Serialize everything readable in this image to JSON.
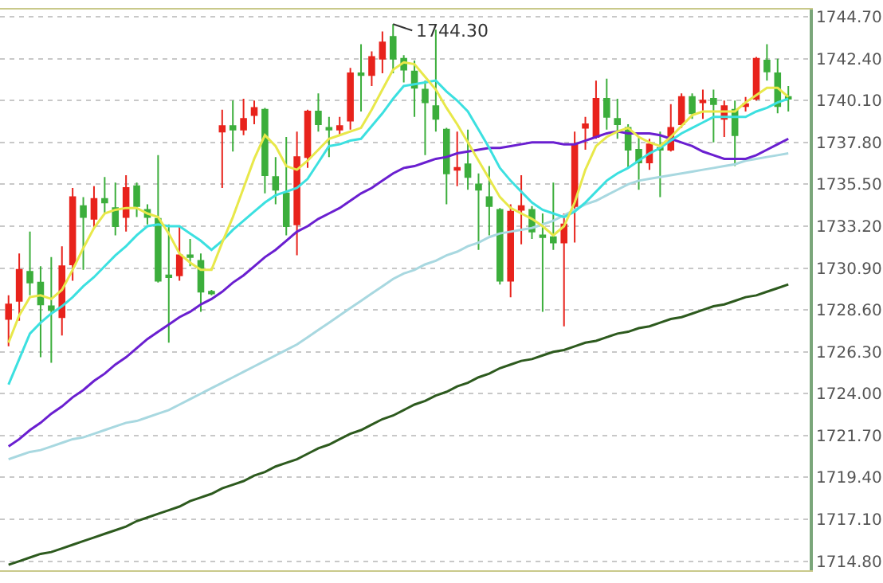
{
  "chart_data": {
    "type": "candlestick",
    "categories": [
      null,
      null,
      null,
      null,
      null,
      null,
      null,
      null,
      null,
      null,
      null,
      null,
      null,
      null,
      null,
      null,
      null,
      null,
      null,
      null,
      null,
      null,
      null,
      null,
      null,
      null,
      null,
      null,
      null,
      null,
      null,
      null,
      null,
      null,
      null,
      null,
      null,
      null,
      null,
      null,
      null,
      null,
      null,
      null,
      null,
      null,
      null,
      null,
      null,
      null,
      null,
      null,
      null,
      null,
      null,
      null,
      null,
      null,
      null,
      null,
      null,
      null,
      null,
      null,
      null,
      null,
      null,
      null,
      null,
      null,
      null,
      null,
      null,
      null
    ],
    "ohlc": [
      [
        1728.1,
        1729.4,
        1726.6,
        1728.9
      ],
      [
        1729.1,
        1731.7,
        1728.0,
        1730.8
      ],
      [
        1730.7,
        1732.9,
        1729.4,
        1730.1
      ],
      [
        1730.1,
        1731.0,
        1726.0,
        1728.9
      ],
      [
        1728.8,
        1731.5,
        1725.7,
        1728.6
      ],
      [
        1728.2,
        1732.1,
        1727.2,
        1731.0
      ],
      [
        1731.1,
        1735.3,
        1730.2,
        1734.8
      ],
      [
        1734.3,
        1734.8,
        1730.8,
        1733.7
      ],
      [
        1733.6,
        1735.4,
        1733.1,
        1734.7
      ],
      [
        1734.7,
        1735.9,
        1733.9,
        1734.5
      ],
      [
        1734.2,
        1735.6,
        1732.7,
        1733.2
      ],
      [
        1733.7,
        1736.0,
        1732.9,
        1735.3
      ],
      [
        1735.4,
        1735.6,
        1733.7,
        1734.3
      ],
      [
        1734.1,
        1734.4,
        1733.3,
        1733.7
      ],
      [
        1733.6,
        1737.1,
        1730.1,
        1730.2
      ],
      [
        1730.5,
        1733.3,
        1726.8,
        1730.4
      ],
      [
        1730.5,
        1733.2,
        1730.2,
        1731.6
      ],
      [
        1731.6,
        1732.5,
        1731.0,
        1731.5
      ],
      [
        1731.3,
        1731.7,
        1728.5,
        1729.6
      ],
      [
        1729.6,
        1729.7,
        1729.4,
        1729.5
      ],
      [
        1738.4,
        1739.6,
        1735.3,
        1738.7
      ],
      [
        1738.7,
        1740.1,
        1737.3,
        1738.5
      ],
      [
        1738.5,
        1740.2,
        1738.2,
        1739.1
      ],
      [
        1739.3,
        1740.1,
        1738.8,
        1739.7
      ],
      [
        1739.6,
        1739.7,
        1735.0,
        1736.0
      ],
      [
        1735.9,
        1737.0,
        1734.4,
        1735.2
      ],
      [
        1735.0,
        1738.1,
        1732.7,
        1733.2
      ],
      [
        1733.3,
        1738.4,
        1731.6,
        1737.0
      ],
      [
        1737.0,
        1739.6,
        1736.4,
        1739.5
      ],
      [
        1739.5,
        1740.5,
        1738.4,
        1738.8
      ],
      [
        1738.6,
        1739.2,
        1737.0,
        1738.5
      ],
      [
        1738.5,
        1739.2,
        1738.2,
        1738.7
      ],
      [
        1739.0,
        1741.9,
        1738.5,
        1741.6
      ],
      [
        1741.6,
        1743.2,
        1739.5,
        1741.5
      ],
      [
        1741.5,
        1742.8,
        1740.9,
        1742.5
      ],
      [
        1742.4,
        1743.9,
        1741.6,
        1743.3
      ],
      [
        1743.6,
        1744.3,
        1741.6,
        1742.4
      ],
      [
        1742.4,
        1742.6,
        1741.1,
        1741.8
      ],
      [
        1741.7,
        1742.3,
        1739.2,
        1740.8
      ],
      [
        1740.7,
        1741.2,
        1737.1,
        1740.0
      ],
      [
        1739.8,
        1744.0,
        1738.4,
        1739.1
      ],
      [
        1738.5,
        1738.6,
        1734.4,
        1736.1
      ],
      [
        1736.3,
        1738.4,
        1735.4,
        1736.4
      ],
      [
        1736.6,
        1738.5,
        1735.2,
        1735.9
      ],
      [
        1735.5,
        1736.1,
        1731.9,
        1735.2
      ],
      [
        1734.8,
        1736.5,
        1732.7,
        1734.3
      ],
      [
        1734.1,
        1734.2,
        1730.0,
        1730.2
      ],
      [
        1730.2,
        1734.4,
        1729.3,
        1734.0
      ],
      [
        1734.1,
        1736.0,
        1732.2,
        1734.3
      ],
      [
        1734.1,
        1734.3,
        1732.5,
        1732.9
      ],
      [
        1732.7,
        1733.9,
        1728.5,
        1732.6
      ],
      [
        1732.6,
        1735.6,
        1731.9,
        1732.3
      ],
      [
        1732.3,
        1733.9,
        1727.7,
        1733.3
      ],
      [
        1734.3,
        1738.4,
        1732.3,
        1737.7
      ],
      [
        1738.6,
        1739.2,
        1737.4,
        1738.8
      ],
      [
        1738.1,
        1741.2,
        1738.0,
        1740.2
      ],
      [
        1740.2,
        1741.3,
        1738.5,
        1739.2
      ],
      [
        1739.1,
        1740.2,
        1738.0,
        1738.8
      ],
      [
        1738.6,
        1738.8,
        1736.4,
        1737.4
      ],
      [
        1737.4,
        1738.1,
        1735.2,
        1736.7
      ],
      [
        1736.7,
        1738.0,
        1736.3,
        1737.7
      ],
      [
        1737.5,
        1738.4,
        1734.8,
        1737.4
      ],
      [
        1737.4,
        1739.9,
        1737.3,
        1738.6
      ],
      [
        1738.8,
        1740.5,
        1738.6,
        1740.3
      ],
      [
        1740.3,
        1740.5,
        1739.1,
        1739.4
      ],
      [
        1740.0,
        1740.7,
        1739.1,
        1740.1
      ],
      [
        1740.2,
        1740.7,
        1737.8,
        1739.9
      ],
      [
        1739.1,
        1740.1,
        1738.1,
        1739.8
      ],
      [
        1739.6,
        1740.1,
        1736.5,
        1738.2
      ],
      [
        1739.8,
        1740.3,
        1739.5,
        1739.9
      ],
      [
        1740.2,
        1742.5,
        1740.1,
        1742.4
      ],
      [
        1742.3,
        1743.2,
        1741.2,
        1741.7
      ],
      [
        1741.6,
        1742.4,
        1739.4,
        1739.8
      ],
      [
        1740.3,
        1740.9,
        1739.5,
        1740.2
      ]
    ],
    "colors": [
      "#e8231c",
      "#e8231c",
      "#3cae3c",
      "#3cae3c",
      "#3cae3c",
      "#e8231c",
      "#e8231c",
      "#3cae3c",
      "#e8231c",
      "#3cae3c",
      "#3cae3c",
      "#e8231c",
      "#3cae3c",
      "#3cae3c",
      "#3cae3c",
      "#3cae3c",
      "#e8231c",
      "#3cae3c",
      "#3cae3c",
      "#3cae3c",
      "#e8231c",
      "#3cae3c",
      "#e8231c",
      "#e8231c",
      "#3cae3c",
      "#3cae3c",
      "#3cae3c",
      "#e8231c",
      "#e8231c",
      "#3cae3c",
      "#3cae3c",
      "#e8231c",
      "#e8231c",
      "#3cae3c",
      "#e8231c",
      "#e8231c",
      "#3cae3c",
      "#3cae3c",
      "#3cae3c",
      "#3cae3c",
      "#3cae3c",
      "#3cae3c",
      "#e8231c",
      "#3cae3c",
      "#3cae3c",
      "#3cae3c",
      "#3cae3c",
      "#e8231c",
      "#e8231c",
      "#3cae3c",
      "#3cae3c",
      "#3cae3c",
      "#e8231c",
      "#e8231c",
      "#e8231c",
      "#e8231c",
      "#3cae3c",
      "#3cae3c",
      "#3cae3c",
      "#3cae3c",
      "#e8231c",
      "#3cae3c",
      "#e8231c",
      "#e8231c",
      "#3cae3c",
      "#e8231c",
      "#3cae3c",
      "#e8231c",
      "#3cae3c",
      "#e8231c",
      "#e8231c",
      "#3cae3c",
      "#3cae3c",
      "#3cae3c"
    ],
    "series": [
      {
        "type": "line",
        "color": "#2d5a1e",
        "values": [
          1714.6,
          1714.8,
          1715.0,
          1715.2,
          1715.3,
          1715.5,
          1715.7,
          1715.9,
          1716.1,
          1716.3,
          1716.5,
          1716.7,
          1717.0,
          1717.2,
          1717.4,
          1717.6,
          1717.8,
          1718.1,
          1718.3,
          1718.5,
          1718.8,
          1719.0,
          1719.2,
          1719.5,
          1719.7,
          1720.0,
          1720.2,
          1720.4,
          1720.7,
          1721.0,
          1721.2,
          1721.5,
          1721.8,
          1722.0,
          1722.3,
          1722.6,
          1722.8,
          1723.1,
          1723.4,
          1723.6,
          1723.9,
          1724.1,
          1724.4,
          1724.6,
          1724.9,
          1725.1,
          1725.4,
          1725.6,
          1725.8,
          1725.9,
          1726.1,
          1726.3,
          1726.4,
          1726.6,
          1726.8,
          1726.9,
          1727.1,
          1727.3,
          1727.4,
          1727.6,
          1727.7,
          1727.9,
          1728.1,
          1728.2,
          1728.4,
          1728.6,
          1728.8,
          1728.9,
          1729.1,
          1729.3,
          1729.4,
          1729.6,
          1729.8,
          1730.0
        ]
      },
      {
        "type": "line",
        "color": "#a8d8e0",
        "values": [
          1720.4,
          1720.6,
          1720.8,
          1720.9,
          1721.1,
          1721.3,
          1721.5,
          1721.6,
          1721.8,
          1722.0,
          1722.2,
          1722.4,
          1722.5,
          1722.7,
          1722.9,
          1723.1,
          1723.4,
          1723.7,
          1724.0,
          1724.3,
          1724.6,
          1724.9,
          1725.2,
          1725.5,
          1725.8,
          1726.1,
          1726.4,
          1726.7,
          1727.1,
          1727.5,
          1727.9,
          1728.3,
          1728.7,
          1729.1,
          1729.5,
          1729.9,
          1730.3,
          1730.6,
          1730.8,
          1731.1,
          1731.3,
          1731.6,
          1731.8,
          1732.1,
          1732.3,
          1732.6,
          1732.8,
          1732.9,
          1733.0,
          1733.1,
          1733.3,
          1733.5,
          1733.8,
          1734.1,
          1734.4,
          1734.6,
          1734.9,
          1735.2,
          1735.5,
          1735.7,
          1735.8,
          1735.9,
          1736.0,
          1736.1,
          1736.2,
          1736.3,
          1736.4,
          1736.5,
          1736.6,
          1736.8,
          1736.9,
          1737.0,
          1737.1,
          1737.2
        ]
      },
      {
        "type": "line",
        "color": "#6a1fd0",
        "values": [
          1721.1,
          1721.5,
          1722.0,
          1722.4,
          1722.9,
          1723.3,
          1723.8,
          1724.2,
          1724.7,
          1725.1,
          1725.6,
          1726.0,
          1726.5,
          1727.0,
          1727.4,
          1727.8,
          1728.2,
          1728.5,
          1728.9,
          1729.2,
          1729.6,
          1730.1,
          1730.5,
          1731.0,
          1731.5,
          1731.9,
          1732.4,
          1732.9,
          1733.2,
          1733.6,
          1733.9,
          1734.2,
          1734.6,
          1735.0,
          1735.3,
          1735.7,
          1736.1,
          1736.4,
          1736.5,
          1736.7,
          1736.9,
          1737.0,
          1737.2,
          1737.3,
          1737.4,
          1737.5,
          1737.5,
          1737.6,
          1737.7,
          1737.8,
          1737.8,
          1737.8,
          1737.7,
          1737.7,
          1737.9,
          1738.1,
          1738.3,
          1738.4,
          1738.3,
          1738.3,
          1738.3,
          1738.2,
          1738.0,
          1737.8,
          1737.6,
          1737.3,
          1737.1,
          1736.9,
          1736.9,
          1736.9,
          1737.1,
          1737.4,
          1737.7,
          1738.0
        ]
      },
      {
        "type": "line",
        "color": "#3ce0e0",
        "values": [
          1724.5,
          1725.9,
          1727.3,
          1727.9,
          1728.4,
          1728.8,
          1729.3,
          1729.9,
          1730.4,
          1731.0,
          1731.6,
          1732.1,
          1732.7,
          1733.2,
          1733.3,
          1733.2,
          1733.2,
          1732.8,
          1732.4,
          1731.9,
          1732.4,
          1733.0,
          1733.5,
          1734.0,
          1734.5,
          1734.9,
          1735.1,
          1735.3,
          1735.8,
          1736.7,
          1737.6,
          1737.7,
          1737.9,
          1738.0,
          1738.7,
          1739.4,
          1740.2,
          1740.9,
          1741.0,
          1741.1,
          1741.2,
          1740.6,
          1740.1,
          1739.5,
          1738.5,
          1737.5,
          1736.4,
          1735.7,
          1735.1,
          1734.5,
          1734.1,
          1733.9,
          1733.7,
          1734.0,
          1734.5,
          1735.1,
          1735.7,
          1736.1,
          1736.4,
          1736.8,
          1737.2,
          1737.5,
          1737.9,
          1738.3,
          1738.6,
          1738.9,
          1739.2,
          1739.2,
          1739.2,
          1739.2,
          1739.5,
          1739.7,
          1740.0,
          1740.2
        ]
      },
      {
        "type": "line",
        "color": "#e8e84a",
        "values": [
          1726.8,
          1728.3,
          1729.3,
          1729.4,
          1729.2,
          1729.7,
          1730.8,
          1732.0,
          1733.1,
          1733.9,
          1734.1,
          1734.2,
          1734.2,
          1733.9,
          1733.7,
          1732.8,
          1731.7,
          1731.2,
          1730.8,
          1730.8,
          1732.3,
          1733.7,
          1735.3,
          1736.9,
          1738.2,
          1737.6,
          1736.5,
          1736.3,
          1736.8,
          1737.4,
          1738.0,
          1738.2,
          1738.4,
          1738.6,
          1739.6,
          1740.7,
          1741.8,
          1742.2,
          1742.1,
          1741.4,
          1740.7,
          1739.7,
          1738.8,
          1737.8,
          1736.8,
          1735.8,
          1734.8,
          1734.2,
          1733.9,
          1733.6,
          1733.2,
          1732.7,
          1733.2,
          1734.5,
          1736.3,
          1737.6,
          1738.1,
          1738.4,
          1738.6,
          1738.1,
          1737.8,
          1737.6,
          1738.1,
          1738.7,
          1739.3,
          1739.5,
          1739.5,
          1739.5,
          1739.5,
          1740.0,
          1740.4,
          1740.8,
          1740.8,
          1740.3
        ]
      }
    ],
    "annotations": [
      "1744.30"
    ],
    "ylim": [
      1714.3,
      1745.1
    ],
    "yticks": [
      {
        "value": 1744.7,
        "label": "1744.70"
      },
      {
        "value": 1742.4,
        "label": "1742.40"
      },
      {
        "value": 1740.1,
        "label": "1740.10"
      },
      {
        "value": 1737.8,
        "label": "1737.80"
      },
      {
        "value": 1735.5,
        "label": "1735.50"
      },
      {
        "value": 1733.2,
        "label": "1733.20"
      },
      {
        "value": 1730.9,
        "label": "1730.90"
      },
      {
        "value": 1728.6,
        "label": "1728.60"
      },
      {
        "value": 1726.3,
        "label": "1726.30"
      },
      {
        "value": 1724.0,
        "label": "1724.00"
      },
      {
        "value": 1721.7,
        "label": "1721.70"
      },
      {
        "value": 1719.4,
        "label": "1719.40"
      },
      {
        "value": 1717.1,
        "label": "1717.10"
      },
      {
        "value": 1714.8,
        "label": "1714.80"
      }
    ],
    "tick_labels": "y",
    "grid": "y"
  }
}
